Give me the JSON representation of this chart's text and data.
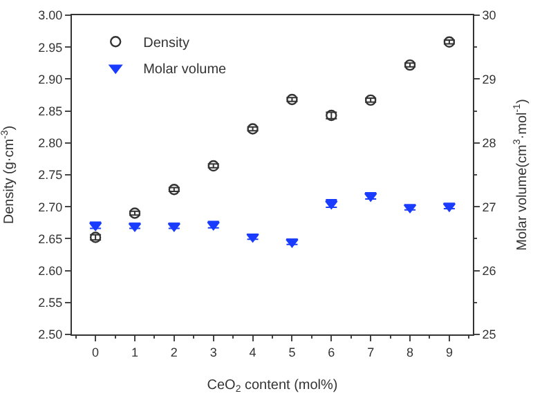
{
  "chart_data": {
    "type": "scatter",
    "xlabel": "CeO$_{2}$ content (mol%)",
    "ylabel": "Density (g·cm$^{-3}$)",
    "y2label": "Molar volume(cm$^{3}$·mol$^{-1}$)",
    "x": [
      0,
      1,
      2,
      3,
      4,
      5,
      6,
      7,
      8,
      9
    ],
    "xlim": [
      -0.6,
      9.6
    ],
    "xticks": [
      0,
      1,
      2,
      3,
      4,
      5,
      6,
      7,
      8,
      9
    ],
    "ylim": [
      2.5,
      3.0
    ],
    "yticks": [
      {
        "value": 2.5,
        "label": "2.50"
      },
      {
        "value": 2.55,
        "label": "2.55"
      },
      {
        "value": 2.6,
        "label": "2.60"
      },
      {
        "value": 2.65,
        "label": "2.65"
      },
      {
        "value": 2.7,
        "label": "2.70"
      },
      {
        "value": 2.75,
        "label": "2.75"
      },
      {
        "value": 2.8,
        "label": "2.80"
      },
      {
        "value": 2.85,
        "label": "2.85"
      },
      {
        "value": 2.9,
        "label": "2.90"
      },
      {
        "value": 2.95,
        "label": "2.95"
      },
      {
        "value": 3.0,
        "label": "3.00"
      }
    ],
    "y2lim": [
      25,
      30
    ],
    "y2ticks": [
      25,
      26,
      27,
      28,
      29,
      30
    ],
    "series": [
      {
        "name": "Density",
        "color": "#333333",
        "marker": "circle",
        "values": [
          2.652,
          2.69,
          2.727,
          2.764,
          2.822,
          2.868,
          2.843,
          2.867,
          2.922,
          2.958
        ],
        "errors": [
          0.004,
          0.003,
          0.003,
          0.003,
          0.003,
          0.003,
          0.005,
          0.003,
          0.003,
          0.003
        ]
      },
      {
        "name": "Molar volume",
        "color": "#1a3cff",
        "marker": "triangle-down",
        "axis": "y2",
        "values": [
          26.71,
          26.7,
          26.7,
          26.72,
          26.53,
          26.45,
          27.05,
          27.17,
          26.99,
          27.01
        ],
        "errors": [
          0.05,
          0.04,
          0.04,
          0.05,
          0.04,
          0.04,
          0.06,
          0.05,
          0.04,
          0.04
        ]
      }
    ],
    "legend": "top left"
  }
}
